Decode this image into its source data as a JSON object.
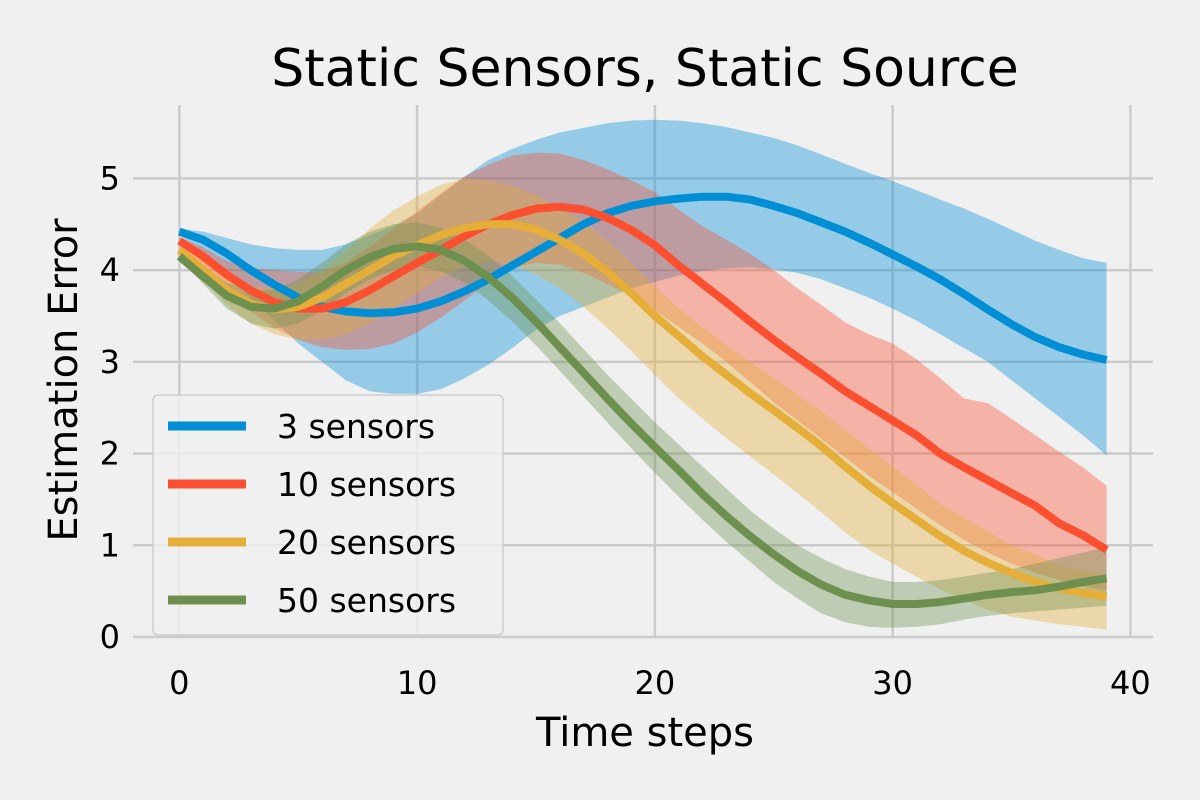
{
  "chart_data": {
    "type": "line",
    "title": "Static Sensors, Static Source",
    "xlabel": "Time steps",
    "ylabel": "Estimation Error",
    "xlim": [
      -1.95,
      40.95
    ],
    "ylim": [
      0,
      5.8
    ],
    "xticks": [
      0,
      10,
      20,
      30,
      40
    ],
    "yticks": [
      0,
      1,
      2,
      3,
      4,
      5
    ],
    "grid": true,
    "legend_position": "bottom-left",
    "x": [
      0,
      1,
      2,
      3,
      4,
      5,
      6,
      7,
      8,
      9,
      10,
      11,
      12,
      13,
      14,
      15,
      16,
      17,
      18,
      19,
      20,
      21,
      22,
      23,
      24,
      25,
      26,
      27,
      28,
      29,
      30,
      31,
      32,
      33,
      34,
      35,
      36,
      37,
      38,
      39
    ],
    "series": [
      {
        "name": "3 sensors",
        "color": "#008fd5",
        "mean": [
          4.42,
          4.33,
          4.18,
          4.0,
          3.84,
          3.7,
          3.6,
          3.55,
          3.53,
          3.54,
          3.58,
          3.66,
          3.77,
          3.9,
          4.05,
          4.2,
          4.35,
          4.5,
          4.62,
          4.7,
          4.75,
          4.78,
          4.8,
          4.8,
          4.77,
          4.7,
          4.62,
          4.52,
          4.42,
          4.3,
          4.17,
          4.04,
          3.9,
          3.74,
          3.57,
          3.41,
          3.27,
          3.16,
          3.08,
          3.02
        ],
        "lower": [
          4.38,
          4.2,
          3.95,
          3.7,
          3.45,
          3.2,
          3.0,
          2.8,
          2.68,
          2.65,
          2.65,
          2.7,
          2.82,
          2.97,
          3.15,
          3.35,
          3.5,
          3.6,
          3.7,
          3.8,
          3.87,
          3.94,
          3.99,
          4.02,
          4.03,
          4.01,
          3.97,
          3.9,
          3.8,
          3.7,
          3.58,
          3.45,
          3.3,
          3.15,
          3.0,
          2.8,
          2.6,
          2.4,
          2.2,
          1.98
        ],
        "upper": [
          4.45,
          4.42,
          4.35,
          4.28,
          4.24,
          4.22,
          4.22,
          4.28,
          4.38,
          4.48,
          4.62,
          4.82,
          5.02,
          5.2,
          5.32,
          5.42,
          5.5,
          5.55,
          5.6,
          5.63,
          5.64,
          5.63,
          5.6,
          5.56,
          5.5,
          5.44,
          5.36,
          5.26,
          5.16,
          5.06,
          4.97,
          4.87,
          4.77,
          4.67,
          4.56,
          4.44,
          4.32,
          4.22,
          4.13,
          4.08
        ]
      },
      {
        "name": "10 sensors",
        "color": "#fc4f30",
        "mean": [
          4.32,
          4.15,
          3.95,
          3.78,
          3.65,
          3.58,
          3.58,
          3.65,
          3.78,
          3.93,
          4.08,
          4.22,
          4.37,
          4.5,
          4.6,
          4.67,
          4.69,
          4.66,
          4.57,
          4.44,
          4.27,
          4.05,
          3.85,
          3.65,
          3.44,
          3.24,
          3.05,
          2.87,
          2.68,
          2.52,
          2.36,
          2.2,
          2.0,
          1.85,
          1.71,
          1.57,
          1.43,
          1.24,
          1.11,
          0.95
        ],
        "lower": [
          4.27,
          4.04,
          3.78,
          3.55,
          3.37,
          3.24,
          3.16,
          3.13,
          3.14,
          3.2,
          3.32,
          3.48,
          3.67,
          3.87,
          4.02,
          4.08,
          4.06,
          3.97,
          3.85,
          3.72,
          3.56,
          3.38,
          3.2,
          3.0,
          2.78,
          2.56,
          2.36,
          2.16,
          1.96,
          1.76,
          1.58,
          1.4,
          1.22,
          1.06,
          0.92,
          0.8,
          0.7,
          0.62,
          0.55,
          0.5
        ],
        "upper": [
          4.36,
          4.25,
          4.1,
          4.02,
          4.0,
          3.98,
          3.98,
          4.08,
          4.25,
          4.45,
          4.64,
          4.84,
          5.02,
          5.15,
          5.25,
          5.28,
          5.27,
          5.2,
          5.1,
          4.98,
          4.85,
          4.66,
          4.48,
          4.33,
          4.18,
          4.0,
          3.8,
          3.62,
          3.43,
          3.3,
          3.2,
          3.03,
          2.82,
          2.6,
          2.55,
          2.38,
          2.2,
          2.02,
          1.85,
          1.65
        ]
      },
      {
        "name": "20 sensors",
        "color": "#e5ae38",
        "mean": [
          4.22,
          4.0,
          3.78,
          3.63,
          3.57,
          3.6,
          3.7,
          3.85,
          4.0,
          4.15,
          4.27,
          4.38,
          4.46,
          4.5,
          4.5,
          4.44,
          4.33,
          4.18,
          3.98,
          3.75,
          3.5,
          3.28,
          3.06,
          2.86,
          2.66,
          2.47,
          2.28,
          2.08,
          1.86,
          1.65,
          1.46,
          1.28,
          1.1,
          0.94,
          0.81,
          0.7,
          0.6,
          0.53,
          0.48,
          0.44
        ],
        "lower": [
          4.18,
          3.9,
          3.62,
          3.42,
          3.3,
          3.24,
          3.24,
          3.3,
          3.42,
          3.58,
          3.75,
          3.92,
          4.05,
          4.1,
          4.06,
          3.95,
          3.8,
          3.6,
          3.37,
          3.12,
          2.86,
          2.6,
          2.38,
          2.17,
          1.97,
          1.77,
          1.57,
          1.36,
          1.14,
          0.95,
          0.8,
          0.66,
          0.52,
          0.4,
          0.3,
          0.22,
          0.18,
          0.14,
          0.11,
          0.08
        ],
        "upper": [
          4.26,
          4.1,
          3.92,
          3.82,
          3.8,
          3.85,
          4.0,
          4.2,
          4.45,
          4.65,
          4.8,
          4.93,
          5.0,
          4.98,
          4.92,
          4.82,
          4.68,
          4.52,
          4.32,
          4.08,
          3.82,
          3.58,
          3.38,
          3.18,
          3.0,
          2.82,
          2.64,
          2.46,
          2.26,
          2.06,
          1.86,
          1.66,
          1.45,
          1.3,
          1.15,
          1.0,
          0.9,
          0.78,
          0.72,
          0.68
        ]
      },
      {
        "name": "50 sensors",
        "color": "#6d904f",
        "mean": [
          4.15,
          3.93,
          3.72,
          3.6,
          3.58,
          3.66,
          3.82,
          4.0,
          4.14,
          4.23,
          4.26,
          4.22,
          4.1,
          3.92,
          3.7,
          3.44,
          3.16,
          2.88,
          2.6,
          2.33,
          2.07,
          1.82,
          1.56,
          1.32,
          1.1,
          0.9,
          0.72,
          0.57,
          0.46,
          0.4,
          0.36,
          0.36,
          0.38,
          0.42,
          0.46,
          0.49,
          0.51,
          0.55,
          0.6,
          0.64
        ],
        "lower": [
          4.12,
          3.85,
          3.58,
          3.42,
          3.36,
          3.42,
          3.56,
          3.75,
          3.9,
          4.0,
          4.04,
          3.99,
          3.86,
          3.67,
          3.44,
          3.18,
          2.9,
          2.62,
          2.34,
          2.06,
          1.79,
          1.53,
          1.28,
          1.04,
          0.82,
          0.6,
          0.42,
          0.26,
          0.16,
          0.11,
          0.1,
          0.11,
          0.14,
          0.19,
          0.23,
          0.26,
          0.28,
          0.3,
          0.32,
          0.34
        ],
        "upper": [
          4.2,
          4.02,
          3.86,
          3.78,
          3.78,
          3.9,
          4.08,
          4.28,
          4.42,
          4.5,
          4.52,
          4.46,
          4.33,
          4.16,
          3.94,
          3.68,
          3.42,
          3.14,
          2.86,
          2.6,
          2.34,
          2.1,
          1.86,
          1.62,
          1.38,
          1.18,
          1.0,
          0.86,
          0.74,
          0.66,
          0.6,
          0.6,
          0.62,
          0.66,
          0.7,
          0.74,
          0.8,
          0.86,
          0.92,
          0.98
        ]
      }
    ]
  }
}
